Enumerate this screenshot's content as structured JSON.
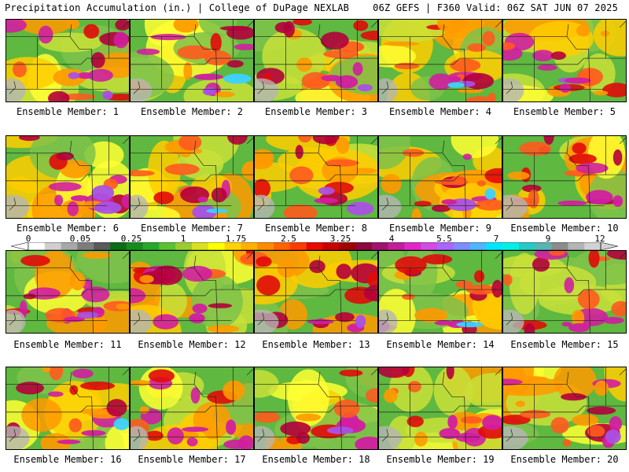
{
  "header": {
    "title": "Precipitation Accumulation (in.) | College of DuPage NEXLAB",
    "valid": "06Z GEFS | F360 Valid: 06Z SAT JUN 07 2025"
  },
  "panels": [
    {
      "label": "Ensemble Member: 1"
    },
    {
      "label": "Ensemble Member: 2"
    },
    {
      "label": "Ensemble Member: 3"
    },
    {
      "label": "Ensemble Member: 4"
    },
    {
      "label": "Ensemble Member: 5"
    },
    {
      "label": "Ensemble Member: 6"
    },
    {
      "label": "Ensemble Member: 7"
    },
    {
      "label": "Ensemble Member: 8"
    },
    {
      "label": "Ensemble Member: 9"
    },
    {
      "label": "Ensemble Member: 10"
    },
    {
      "label": "Ensemble Member: 11"
    },
    {
      "label": "Ensemble Member: 12"
    },
    {
      "label": "Ensemble Member: 13"
    },
    {
      "label": "Ensemble Member: 14"
    },
    {
      "label": "Ensemble Member: 15"
    },
    {
      "label": "Ensemble Member: 16"
    },
    {
      "label": "Ensemble Member: 17"
    },
    {
      "label": "Ensemble Member: 18"
    },
    {
      "label": "Ensemble Member: 19"
    },
    {
      "label": "Ensemble Member: 20"
    }
  ],
  "colorbar": {
    "labels": [
      "0",
      "0.05",
      "0.25",
      "1",
      "1.75",
      "2.5",
      "3.25",
      "4",
      "5.5",
      "7",
      "9",
      "12"
    ],
    "colors": [
      "#ffffff",
      "#cfcfcf",
      "#a8a8a8",
      "#7d7d7d",
      "#5a5a5a",
      "#0b6e16",
      "#168c1f",
      "#24a82c",
      "#5bc132",
      "#9acd32",
      "#d8e020",
      "#ffff00",
      "#ffd400",
      "#ffb000",
      "#ff8c00",
      "#ff6400",
      "#ff3c00",
      "#e60a00",
      "#c80000",
      "#a00000",
      "#8b0a3c",
      "#a0146e",
      "#c01e9b",
      "#e028c8",
      "#d24be6",
      "#aa64ff",
      "#7d8cff",
      "#50b4ff",
      "#00e6ff",
      "#00f0e6",
      "#28c8c8",
      "#5ab4b4",
      "#8c8c8c",
      "#b4b4b4",
      "#d2d2d2"
    ]
  }
}
